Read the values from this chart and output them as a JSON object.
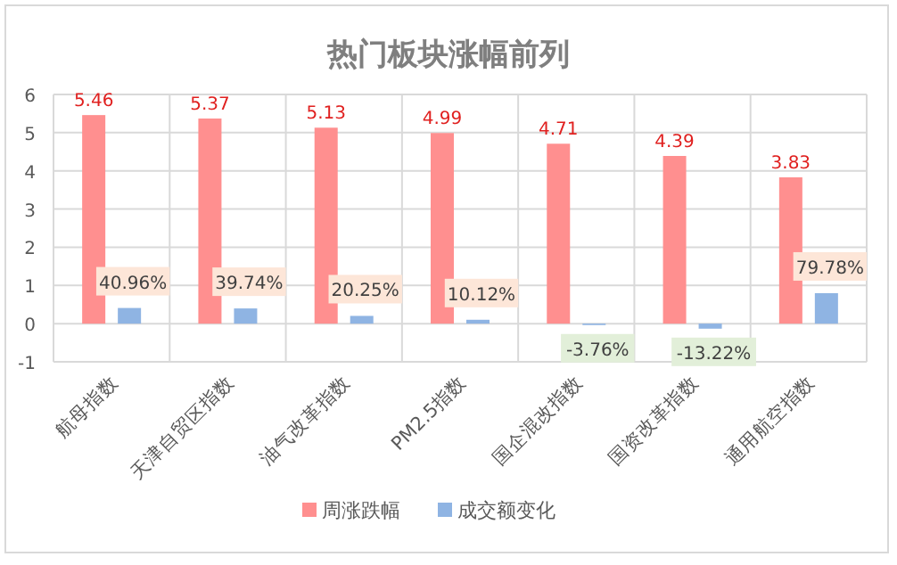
{
  "chart_data": {
    "type": "bar",
    "title": "热门板块涨幅前列",
    "categories": [
      "航母指数",
      "天津自贸区指数",
      "油气改革指数",
      "PM2.5指数",
      "国企混改指数",
      "国资改革指数",
      "通用航空指数"
    ],
    "series": [
      {
        "name": "周涨跌幅",
        "color": "#ff8f8f",
        "values": [
          5.46,
          5.37,
          5.13,
          4.99,
          4.71,
          4.39,
          3.83
        ],
        "value_labels": [
          "5.46",
          "5.37",
          "5.13",
          "4.99",
          "4.71",
          "4.39",
          "3.83"
        ]
      },
      {
        "name": "成交额变化",
        "color": "#8fb4e3",
        "values": [
          0.4096,
          0.3974,
          0.2025,
          0.1012,
          -0.0376,
          -0.1322,
          0.7978
        ],
        "value_labels": [
          "40.96%",
          "39.74%",
          "20.25%",
          "10.12%",
          "-3.76%",
          "-13.22%",
          "79.78%"
        ]
      }
    ],
    "ylim": [
      -1,
      6
    ],
    "yticks": [
      -1,
      0,
      1,
      2,
      3,
      4,
      5,
      6
    ],
    "grid": true,
    "legend": "bottom"
  }
}
